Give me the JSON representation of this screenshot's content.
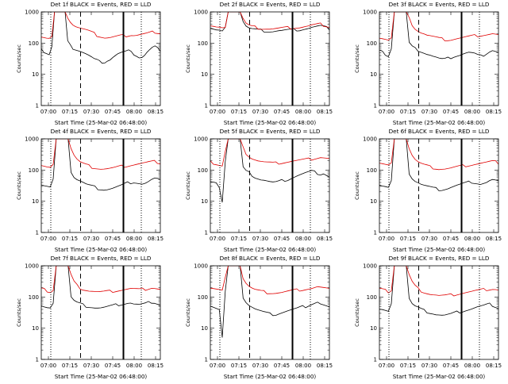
{
  "figure": {
    "xlabel": "Start Time (25-Mar-02 06:48:00)",
    "ylabel": "Counts/sec",
    "x_tick_labels": [
      "07:00",
      "07:15",
      "07:30",
      "07:45",
      "08:00",
      "08:15"
    ],
    "y_tick_labels": [
      "1",
      "10",
      "100",
      "1000"
    ]
  },
  "colors": {
    "events": "#000000",
    "lld": "#e00000",
    "axes": "#000000",
    "background": "#ffffff"
  },
  "chart_data": [
    {
      "type": "line",
      "title": "Det 1f BLACK = Events, RED = LLD",
      "ylim": [
        1,
        1000
      ],
      "series": [
        {
          "name": "BLACK = Events",
          "y": [
            60,
            55,
            50,
            45,
            80,
            1000,
            1000,
            1000,
            1000,
            1000,
            110,
            80,
            70,
            65,
            60,
            55,
            50,
            45,
            40,
            35,
            30,
            28,
            25,
            25,
            25,
            28,
            30,
            35,
            40,
            45,
            48,
            50,
            52,
            55,
            60,
            45,
            40,
            35,
            35,
            40,
            50,
            60,
            70,
            75,
            65,
            60
          ]
        },
        {
          "name": "RED = LLD",
          "y": [
            170,
            160,
            150,
            145,
            160,
            1000,
            1000,
            1000,
            1000,
            1000,
            700,
            500,
            400,
            350,
            320,
            300,
            280,
            260,
            240,
            220,
            200,
            180,
            170,
            160,
            150,
            150,
            150,
            155,
            160,
            165,
            170,
            170,
            175,
            180,
            185,
            180,
            180,
            185,
            190,
            195,
            200,
            210,
            220,
            230,
            220,
            210
          ]
        }
      ]
    },
    {
      "type": "line",
      "title": "Det 2f BLACK = Events, RED = LLD",
      "ylim": [
        1,
        1000
      ],
      "series": [
        {
          "name": "BLACK = Events",
          "y": [
            300,
            280,
            260,
            250,
            230,
            300,
            1000,
            1000,
            1000,
            1000,
            1000,
            500,
            350,
            300,
            280,
            270,
            260,
            255,
            250,
            245,
            240,
            240,
            245,
            250,
            250,
            255,
            260,
            260,
            265,
            270,
            270,
            280,
            290,
            300,
            320,
            330,
            340,
            350,
            330,
            310,
            290
          ]
        },
        {
          "name": "RED = LLD",
          "y": [
            350,
            330,
            310,
            300,
            280,
            350,
            1000,
            1000,
            1000,
            1000,
            1000,
            600,
            420,
            360,
            330,
            320,
            310,
            300,
            295,
            290,
            285,
            285,
            290,
            295,
            300,
            305,
            310,
            310,
            315,
            320,
            320,
            330,
            340,
            350,
            370,
            380,
            390,
            400,
            380,
            360,
            340
          ]
        }
      ]
    },
    {
      "type": "line",
      "title": "Det 3f BLACK = Events, RED = LLD",
      "ylim": [
        1,
        1000
      ],
      "series": [
        {
          "name": "BLACK = Events",
          "y": [
            55,
            50,
            45,
            40,
            70,
            1000,
            1000,
            1000,
            1000,
            1000,
            100,
            75,
            65,
            60,
            55,
            50,
            45,
            42,
            38,
            35,
            32,
            30,
            30,
            32,
            35,
            38,
            40,
            42,
            45,
            48,
            50,
            48,
            45,
            40,
            38,
            42,
            48,
            55,
            60,
            55,
            50
          ]
        },
        {
          "name": "RED = LLD",
          "y": [
            160,
            150,
            140,
            130,
            150,
            1000,
            1000,
            1000,
            1000,
            1000,
            600,
            400,
            300,
            250,
            220,
            200,
            180,
            170,
            160,
            150,
            140,
            135,
            130,
            130,
            130,
            135,
            140,
            145,
            150,
            155,
            160,
            165,
            170,
            175,
            180,
            185,
            190,
            195,
            200,
            190,
            180
          ]
        }
      ]
    },
    {
      "type": "line",
      "title": "Det 4f BLACK = Events, RED = LLD",
      "ylim": [
        1,
        1000
      ],
      "series": [
        {
          "name": "BLACK = Events",
          "y": [
            35,
            32,
            30,
            28,
            50,
            1000,
            1000,
            1000,
            1000,
            1000,
            90,
            60,
            50,
            45,
            40,
            35,
            32,
            30,
            28,
            26,
            25,
            24,
            24,
            25,
            26,
            28,
            30,
            32,
            35,
            38,
            40,
            42,
            40,
            38,
            36,
            38,
            42,
            48,
            52,
            50,
            45
          ]
        },
        {
          "name": "RED = LLD",
          "y": [
            140,
            130,
            120,
            115,
            140,
            1000,
            1000,
            1000,
            1000,
            1000,
            500,
            300,
            220,
            180,
            160,
            145,
            135,
            125,
            120,
            115,
            110,
            110,
            110,
            112,
            115,
            120,
            125,
            130,
            135,
            140,
            145,
            150,
            155,
            160,
            165,
            170,
            175,
            180,
            185,
            180,
            170
          ]
        }
      ]
    },
    {
      "type": "line",
      "title": "Det 5f BLACK = Events, RED = LLD",
      "ylim": [
        1,
        1000
      ],
      "series": [
        {
          "name": "BLACK = Events",
          "y": [
            40,
            38,
            35,
            30,
            10,
            200,
            1000,
            1000,
            1000,
            1000,
            1000,
            120,
            90,
            80,
            70,
            60,
            55,
            50,
            48,
            45,
            42,
            40,
            40,
            42,
            45,
            48,
            50,
            55,
            60,
            65,
            70,
            75,
            80,
            85,
            90,
            85,
            80,
            75,
            80,
            70,
            60
          ]
        },
        {
          "name": "RED = LLD",
          "y": [
            180,
            170,
            160,
            150,
            140,
            400,
            1000,
            1000,
            1000,
            1000,
            1000,
            500,
            350,
            280,
            240,
            220,
            200,
            190,
            180,
            175,
            170,
            165,
            165,
            170,
            175,
            180,
            185,
            190,
            195,
            200,
            205,
            210,
            215,
            220,
            230,
            240,
            250,
            260,
            250,
            240,
            230
          ]
        }
      ]
    },
    {
      "type": "line",
      "title": "Det 6f BLACK = Events, RED = LLD",
      "ylim": [
        1,
        1000
      ],
      "series": [
        {
          "name": "BLACK = Events",
          "y": [
            35,
            32,
            30,
            28,
            45,
            1000,
            1000,
            1000,
            1000,
            1000,
            80,
            55,
            45,
            40,
            35,
            32,
            30,
            28,
            26,
            25,
            24,
            24,
            25,
            26,
            28,
            30,
            32,
            34,
            36,
            38,
            40,
            42,
            40,
            38,
            36,
            38,
            40,
            45,
            48,
            45,
            42
          ]
        },
        {
          "name": "RED = LLD",
          "y": [
            170,
            160,
            150,
            140,
            160,
            1000,
            1000,
            1000,
            1000,
            1000,
            500,
            300,
            220,
            180,
            160,
            145,
            135,
            125,
            120,
            115,
            110,
            110,
            110,
            112,
            115,
            120,
            125,
            130,
            135,
            140,
            145,
            150,
            155,
            160,
            165,
            170,
            175,
            180,
            185,
            180,
            170
          ]
        }
      ]
    },
    {
      "type": "line",
      "title": "Det 7f BLACK = Events, RED = LLD",
      "ylim": [
        1,
        1000
      ],
      "series": [
        {
          "name": "BLACK = Events",
          "y": [
            50,
            45,
            42,
            40,
            70,
            1000,
            1000,
            1000,
            1000,
            1000,
            100,
            75,
            65,
            60,
            55,
            52,
            50,
            48,
            46,
            45,
            45,
            46,
            48,
            50,
            52,
            55,
            58,
            60,
            62,
            65,
            65,
            60,
            58,
            56,
            58,
            60,
            65,
            70,
            68,
            62,
            55
          ]
        },
        {
          "name": "RED = LLD",
          "y": [
            180,
            170,
            160,
            150,
            170,
            1000,
            1000,
            1000,
            1000,
            1000,
            500,
            300,
            230,
            200,
            180,
            170,
            160,
            155,
            150,
            145,
            145,
            145,
            148,
            150,
            155,
            160,
            165,
            170,
            175,
            180,
            185,
            180,
            175,
            170,
            175,
            180,
            190,
            200,
            195,
            185,
            175
          ]
        }
      ]
    },
    {
      "type": "line",
      "title": "Det 8f BLACK = Events, RED = LLD",
      "ylim": [
        1,
        1000
      ],
      "series": [
        {
          "name": "BLACK = Events",
          "y": [
            55,
            50,
            45,
            40,
            5,
            150,
            1000,
            1000,
            1000,
            1000,
            1000,
            100,
            70,
            55,
            48,
            42,
            38,
            35,
            32,
            30,
            28,
            28,
            28,
            30,
            32,
            34,
            36,
            38,
            40,
            42,
            45,
            48,
            50,
            55,
            60,
            65,
            70,
            60,
            55,
            50,
            45
          ]
        },
        {
          "name": "RED = LLD",
          "y": [
            200,
            190,
            180,
            170,
            160,
            400,
            1000,
            1000,
            1000,
            1000,
            1000,
            400,
            280,
            220,
            190,
            170,
            160,
            150,
            145,
            140,
            138,
            136,
            136,
            138,
            140,
            145,
            150,
            155,
            160,
            165,
            170,
            175,
            180,
            185,
            190,
            200,
            210,
            200,
            190,
            180,
            170
          ]
        }
      ]
    },
    {
      "type": "line",
      "title": "Det 9f BLACK = Events, RED = LLD",
      "ylim": [
        1,
        1000
      ],
      "series": [
        {
          "name": "BLACK = Events",
          "y": [
            40,
            38,
            35,
            32,
            55,
            1000,
            1000,
            1000,
            1000,
            1000,
            90,
            60,
            50,
            45,
            40,
            36,
            34,
            32,
            30,
            28,
            27,
            26,
            26,
            27,
            28,
            30,
            32,
            34,
            36,
            38,
            40,
            42,
            45,
            48,
            50,
            52,
            55,
            58,
            55,
            50,
            45
          ]
        },
        {
          "name": "RED = LLD",
          "y": [
            180,
            170,
            160,
            150,
            170,
            1000,
            1000,
            1000,
            1000,
            1000,
            500,
            300,
            220,
            180,
            160,
            145,
            135,
            125,
            120,
            115,
            110,
            110,
            110,
            112,
            115,
            120,
            125,
            130,
            135,
            140,
            145,
            150,
            155,
            160,
            165,
            170,
            175,
            180,
            185,
            180,
            170
          ]
        }
      ]
    }
  ]
}
